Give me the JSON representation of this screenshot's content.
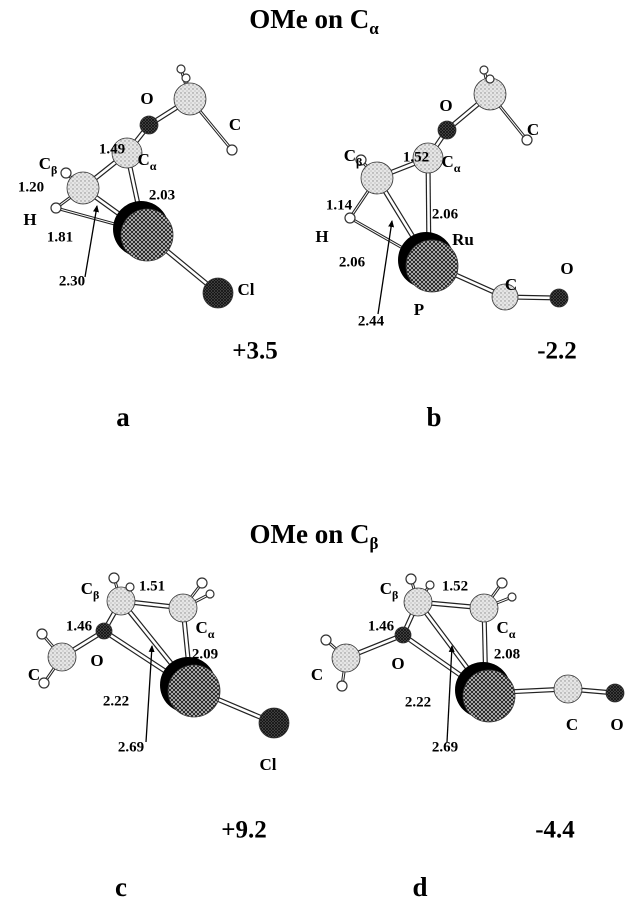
{
  "sections": [
    {
      "title": "OMe on C",
      "title_sub": "α",
      "panels": [
        {
          "letter": "a",
          "energy": "+3.5",
          "atom_labels": [
            {
              "text": "C",
              "sub": "β"
            },
            {
              "text": "O"
            },
            {
              "text": "C"
            },
            {
              "text": "C",
              "sub": "α"
            },
            {
              "text": "H"
            },
            {
              "text": "Cl"
            }
          ],
          "bond_lengths": [
            "1.49",
            "1.20",
            "2.03",
            "1.81",
            "2.30"
          ]
        },
        {
          "letter": "b",
          "energy": "-2.2",
          "atom_labels": [
            {
              "text": "C",
              "sub": "β"
            },
            {
              "text": "O"
            },
            {
              "text": "C"
            },
            {
              "text": "C",
              "sub": "α"
            },
            {
              "text": "H"
            },
            {
              "text": "Ru"
            },
            {
              "text": "C"
            },
            {
              "text": "O"
            },
            {
              "text": "P"
            }
          ],
          "bond_lengths": [
            "1.52",
            "1.14",
            "2.06",
            "2.06",
            "2.44"
          ]
        }
      ]
    },
    {
      "title": "OMe on C",
      "title_sub": "β",
      "panels": [
        {
          "letter": "c",
          "energy": "+9.2",
          "atom_labels": [
            {
              "text": "C",
              "sub": "β"
            },
            {
              "text": "C",
              "sub": "α"
            },
            {
              "text": "O"
            },
            {
              "text": "C"
            },
            {
              "text": "Cl"
            }
          ],
          "bond_lengths": [
            "1.51",
            "1.46",
            "2.09",
            "2.22",
            "2.69"
          ]
        },
        {
          "letter": "d",
          "energy": "-4.4",
          "atom_labels": [
            {
              "text": "C",
              "sub": "β"
            },
            {
              "text": "C",
              "sub": "α"
            },
            {
              "text": "O"
            },
            {
              "text": "C"
            },
            {
              "text": "C"
            },
            {
              "text": "O"
            }
          ],
          "bond_lengths": [
            "1.52",
            "1.46",
            "2.08",
            "2.22",
            "2.69"
          ]
        }
      ]
    }
  ]
}
